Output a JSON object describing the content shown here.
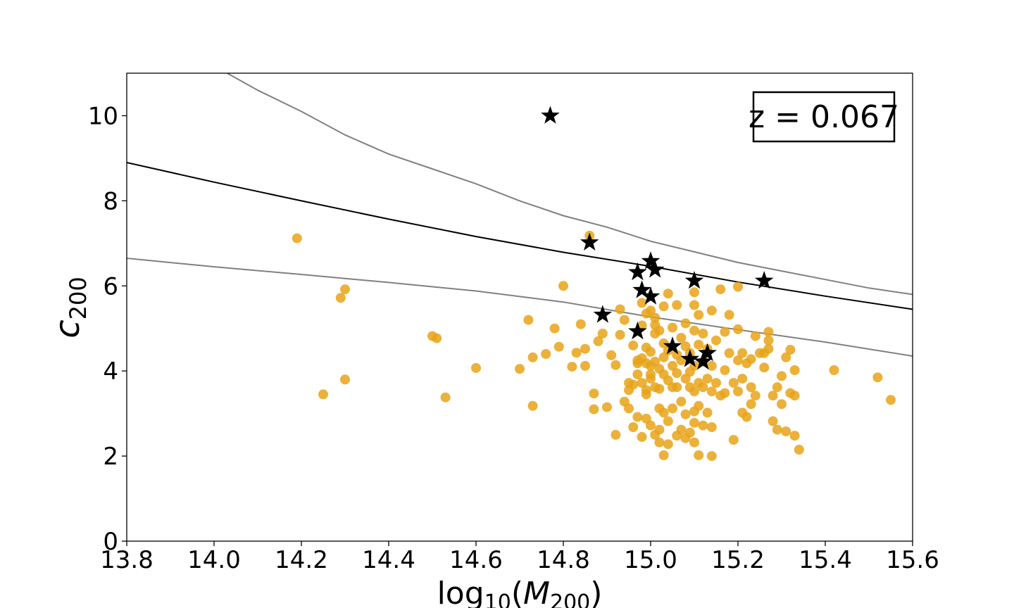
{
  "chart_data": {
    "type": "scatter",
    "title": "",
    "xlabel": "log10(M200)",
    "ylabel": "c200",
    "xlim": [
      13.8,
      15.6
    ],
    "ylim": [
      0,
      11
    ],
    "xticks": [
      13.8,
      14.0,
      14.2,
      14.4,
      14.6,
      14.8,
      15.0,
      15.2,
      15.4,
      15.6
    ],
    "xtick_labels": [
      "13.8",
      "14.0",
      "14.2",
      "14.4",
      "14.6",
      "14.8",
      "15.0",
      "15.2",
      "15.4",
      "15.6"
    ],
    "yticks": [
      0,
      2,
      4,
      6,
      8,
      10
    ],
    "ytick_labels": [
      "0",
      "2",
      "4",
      "6",
      "8",
      "10"
    ],
    "annotation": "z = 0.067",
    "colors": {
      "simulated": "#e8a317",
      "observed": "#000000",
      "median": "#000000",
      "scatter": "#808080"
    },
    "series": [
      {
        "name": "median relation",
        "kind": "line",
        "x": [
          13.8,
          14.0,
          14.2,
          14.4,
          14.6,
          14.8,
          15.0,
          15.2,
          15.4,
          15.6
        ],
        "y": [
          8.9,
          8.44,
          8.0,
          7.57,
          7.16,
          6.79,
          6.46,
          6.09,
          5.76,
          5.45
        ]
      },
      {
        "name": "upper scatter",
        "kind": "line",
        "x": [
          14.03,
          14.1,
          14.2,
          14.3,
          14.4,
          14.5,
          14.6,
          14.7,
          14.8,
          14.9,
          15.0,
          15.1,
          15.2,
          15.3,
          15.4,
          15.5,
          15.6
        ],
        "y": [
          11.0,
          10.6,
          10.1,
          9.55,
          9.1,
          8.75,
          8.4,
          8.0,
          7.65,
          7.38,
          7.05,
          6.8,
          6.55,
          6.35,
          6.15,
          5.95,
          5.8
        ]
      },
      {
        "name": "lower scatter",
        "kind": "line",
        "x": [
          13.8,
          14.0,
          14.2,
          14.4,
          14.6,
          14.8,
          15.0,
          15.2,
          15.4,
          15.6
        ],
        "y": [
          6.65,
          6.45,
          6.27,
          6.08,
          5.88,
          5.62,
          5.27,
          4.97,
          4.68,
          4.35
        ]
      },
      {
        "name": "simulated clusters",
        "kind": "points",
        "marker": "circle",
        "points": [
          [
            14.19,
            7.12
          ],
          [
            14.29,
            5.72
          ],
          [
            14.3,
            5.92
          ],
          [
            14.25,
            3.45
          ],
          [
            14.3,
            3.8
          ],
          [
            14.5,
            4.82
          ],
          [
            14.51,
            4.77
          ],
          [
            14.53,
            3.38
          ],
          [
            14.6,
            4.07
          ],
          [
            14.7,
            4.05
          ],
          [
            14.72,
            5.2
          ],
          [
            14.73,
            4.32
          ],
          [
            14.73,
            3.18
          ],
          [
            14.76,
            4.4
          ],
          [
            14.78,
            5.0
          ],
          [
            14.79,
            4.57
          ],
          [
            14.8,
            6.0
          ],
          [
            14.82,
            4.1
          ],
          [
            14.83,
            4.43
          ],
          [
            14.84,
            5.1
          ],
          [
            14.85,
            4.12
          ],
          [
            14.85,
            4.52
          ],
          [
            14.86,
            7.18
          ],
          [
            14.87,
            3.47
          ],
          [
            14.87,
            3.1
          ],
          [
            14.88,
            4.7
          ],
          [
            14.89,
            4.88
          ],
          [
            14.9,
            3.15
          ],
          [
            14.91,
            4.37
          ],
          [
            14.92,
            2.5
          ],
          [
            14.92,
            4.14
          ],
          [
            14.93,
            4.85
          ],
          [
            14.93,
            5.45
          ],
          [
            14.94,
            3.28
          ],
          [
            14.94,
            5.2
          ],
          [
            14.95,
            3.55
          ],
          [
            14.95,
            3.12
          ],
          [
            14.95,
            3.72
          ],
          [
            14.96,
            2.68
          ],
          [
            14.96,
            4.6
          ],
          [
            14.96,
            3.68
          ],
          [
            14.97,
            4.25
          ],
          [
            14.97,
            4.18
          ],
          [
            14.97,
            3.92
          ],
          [
            14.97,
            2.92
          ],
          [
            14.98,
            5.6
          ],
          [
            14.98,
            4.3
          ],
          [
            14.98,
            3.72
          ],
          [
            14.98,
            2.45
          ],
          [
            14.98,
            5.07
          ],
          [
            14.99,
            4.55
          ],
          [
            14.99,
            4.18
          ],
          [
            14.99,
            3.55
          ],
          [
            14.99,
            3.45
          ],
          [
            14.99,
            2.88
          ],
          [
            14.99,
            5.35
          ],
          [
            15.0,
            4.45
          ],
          [
            15.0,
            4.12
          ],
          [
            15.0,
            3.92
          ],
          [
            15.0,
            3.82
          ],
          [
            15.0,
            2.72
          ],
          [
            15.0,
            5.42
          ],
          [
            15.01,
            5.08
          ],
          [
            15.01,
            4.22
          ],
          [
            15.01,
            3.62
          ],
          [
            15.01,
            2.5
          ],
          [
            15.01,
            4.88
          ],
          [
            15.01,
            5.25
          ],
          [
            15.02,
            4.95
          ],
          [
            15.02,
            4.05
          ],
          [
            15.02,
            3.12
          ],
          [
            15.02,
            2.62
          ],
          [
            15.02,
            2.32
          ],
          [
            15.02,
            3.58
          ],
          [
            15.03,
            4.65
          ],
          [
            15.03,
            4.32
          ],
          [
            15.03,
            3.92
          ],
          [
            15.03,
            2.02
          ],
          [
            15.03,
            3.02
          ],
          [
            15.03,
            5.52
          ],
          [
            15.04,
            5.82
          ],
          [
            15.04,
            4.48
          ],
          [
            15.04,
            3.78
          ],
          [
            15.04,
            2.82
          ],
          [
            15.04,
            2.28
          ],
          [
            15.05,
            4.12
          ],
          [
            15.05,
            3.62
          ],
          [
            15.05,
            3.12
          ],
          [
            15.05,
            5.02
          ],
          [
            15.06,
            4.38
          ],
          [
            15.06,
            3.95
          ],
          [
            15.06,
            2.48
          ],
          [
            15.06,
            3.62
          ],
          [
            15.06,
            5.55
          ],
          [
            15.07,
            4.78
          ],
          [
            15.07,
            4.25
          ],
          [
            15.07,
            3.28
          ],
          [
            15.07,
            2.62
          ],
          [
            15.08,
            4.58
          ],
          [
            15.08,
            3.82
          ],
          [
            15.08,
            2.98
          ],
          [
            15.08,
            2.42
          ],
          [
            15.08,
            5.12
          ],
          [
            15.09,
            4.42
          ],
          [
            15.09,
            3.62
          ],
          [
            15.09,
            2.55
          ],
          [
            15.09,
            3.98
          ],
          [
            15.1,
            5.85
          ],
          [
            15.1,
            5.55
          ],
          [
            15.1,
            4.95
          ],
          [
            15.1,
            4.12
          ],
          [
            15.1,
            3.52
          ],
          [
            15.1,
            2.78
          ],
          [
            15.1,
            2.32
          ],
          [
            15.1,
            3.05
          ],
          [
            15.11,
            5.32
          ],
          [
            15.11,
            4.62
          ],
          [
            15.11,
            3.72
          ],
          [
            15.11,
            3.18
          ],
          [
            15.11,
            2.02
          ],
          [
            15.12,
            4.88
          ],
          [
            15.12,
            4.22
          ],
          [
            15.12,
            3.62
          ],
          [
            15.12,
            2.72
          ],
          [
            15.13,
            4.52
          ],
          [
            15.13,
            3.82
          ],
          [
            15.13,
            3.02
          ],
          [
            15.14,
            5.42
          ],
          [
            15.14,
            4.12
          ],
          [
            15.14,
            3.52
          ],
          [
            15.14,
            2.68
          ],
          [
            15.14,
            2.0
          ],
          [
            15.15,
            4.72
          ],
          [
            15.15,
            3.72
          ],
          [
            15.16,
            5.92
          ],
          [
            15.16,
            3.42
          ],
          [
            15.17,
            4.92
          ],
          [
            15.17,
            4.02
          ],
          [
            15.17,
            3.48
          ],
          [
            15.18,
            5.32
          ],
          [
            15.18,
            4.42
          ],
          [
            15.19,
            3.72
          ],
          [
            15.19,
            2.38
          ],
          [
            15.2,
            5.98
          ],
          [
            15.2,
            4.98
          ],
          [
            15.2,
            4.25
          ],
          [
            15.2,
            3.52
          ],
          [
            15.21,
            4.42
          ],
          [
            15.21,
            3.82
          ],
          [
            15.21,
            3.02
          ],
          [
            15.22,
            4.18
          ],
          [
            15.22,
            2.92
          ],
          [
            15.23,
            4.28
          ],
          [
            15.23,
            3.62
          ],
          [
            15.23,
            3.22
          ],
          [
            15.24,
            4.82
          ],
          [
            15.24,
            3.42
          ],
          [
            15.25,
            4.42
          ],
          [
            15.26,
            4.42
          ],
          [
            15.26,
            4.08
          ],
          [
            15.27,
            4.92
          ],
          [
            15.27,
            4.72
          ],
          [
            15.27,
            4.52
          ],
          [
            15.28,
            3.42
          ],
          [
            15.28,
            2.82
          ],
          [
            15.29,
            2.62
          ],
          [
            15.29,
            3.62
          ],
          [
            15.3,
            3.88
          ],
          [
            15.3,
            3.22
          ],
          [
            15.31,
            4.32
          ],
          [
            15.31,
            2.58
          ],
          [
            15.32,
            3.48
          ],
          [
            15.32,
            4.5
          ],
          [
            15.33,
            4.02
          ],
          [
            15.33,
            3.42
          ],
          [
            15.33,
            2.48
          ],
          [
            15.34,
            2.15
          ],
          [
            15.42,
            4.02
          ],
          [
            15.52,
            3.85
          ],
          [
            15.55,
            3.32
          ]
        ]
      },
      {
        "name": "observed clusters",
        "kind": "points",
        "marker": "star",
        "points": [
          [
            14.77,
            10.0
          ],
          [
            14.86,
            7.02
          ],
          [
            14.89,
            5.32
          ],
          [
            14.97,
            6.32
          ],
          [
            14.97,
            4.93
          ],
          [
            14.98,
            5.9
          ],
          [
            15.0,
            6.58
          ],
          [
            15.0,
            5.75
          ],
          [
            15.01,
            6.38
          ],
          [
            15.05,
            4.58
          ],
          [
            15.1,
            6.12
          ],
          [
            15.09,
            4.28
          ],
          [
            15.12,
            4.22
          ],
          [
            15.13,
            4.42
          ],
          [
            15.26,
            6.12
          ]
        ]
      }
    ]
  }
}
